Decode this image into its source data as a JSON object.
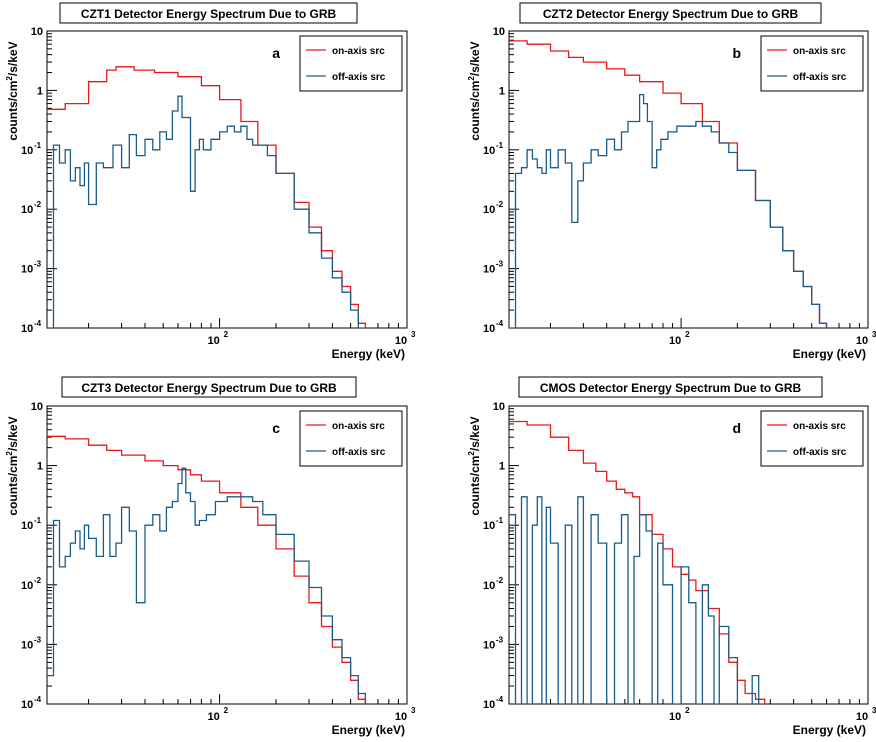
{
  "figure": {
    "ylabel_prefix": "counts/cm",
    "ylabel_sup": "2",
    "ylabel_suffix": "/s/keV",
    "xlabel": "Energy (keV)"
  },
  "chart_data": [
    {
      "type": "line",
      "panel": "a",
      "title": "CZT1 Detector Energy Spectrum Due to GRB",
      "xlabel": "Energy (keV)",
      "ylabel": "counts/cm^2/s/keV",
      "xscale": "log",
      "yscale": "log",
      "xlim": [
        12,
        1000
      ],
      "ylim": [
        0.0001,
        10
      ],
      "legend_position": "top-right",
      "series": [
        {
          "name": "on-axis src",
          "color": "#e8191b",
          "x": [
            12,
            15,
            20,
            25,
            28,
            35,
            45,
            60,
            80,
            100,
            130,
            160,
            200,
            250,
            300,
            350,
            400,
            450,
            500,
            550,
            600
          ],
          "y": [
            0.48,
            0.6,
            1.4,
            2.2,
            2.5,
            2.2,
            2.0,
            1.7,
            1.2,
            0.7,
            0.3,
            0.12,
            0.04,
            0.013,
            0.005,
            0.002,
            0.0009,
            0.0005,
            0.00025,
            0.00012,
            0.0001
          ]
        },
        {
          "name": "off-axis src",
          "color": "#1a5c8a",
          "x": [
            12,
            13,
            14,
            15,
            16,
            17,
            18,
            19,
            20,
            22,
            24,
            27,
            30,
            33,
            36,
            40,
            44,
            48,
            52,
            56,
            60,
            63,
            66,
            70,
            74,
            78,
            82,
            90,
            100,
            110,
            120,
            130,
            140,
            150,
            160,
            180,
            200,
            250,
            300,
            350,
            400,
            450,
            500,
            550,
            600
          ],
          "y": [
            0.0001,
            0.12,
            0.06,
            0.1,
            0.03,
            0.05,
            0.025,
            0.06,
            0.012,
            0.06,
            0.05,
            0.12,
            0.05,
            0.18,
            0.08,
            0.15,
            0.1,
            0.2,
            0.15,
            0.45,
            0.8,
            0.35,
            0.35,
            0.02,
            0.1,
            0.15,
            0.1,
            0.15,
            0.2,
            0.25,
            0.2,
            0.25,
            0.15,
            0.12,
            0.12,
            0.08,
            0.04,
            0.01,
            0.004,
            0.0015,
            0.0007,
            0.0004,
            0.0002,
            0.0001,
            0.0001
          ]
        }
      ]
    },
    {
      "type": "line",
      "panel": "b",
      "title": "CZT2 Detector Energy Spectrum Due to GRB",
      "xlabel": "Energy (keV)",
      "ylabel": "counts/cm^2/s/keV",
      "xscale": "log",
      "yscale": "log",
      "xlim": [
        12,
        1000
      ],
      "ylim": [
        0.0001,
        10
      ],
      "legend_position": "top-right",
      "series": [
        {
          "name": "on-axis src",
          "color": "#e8191b",
          "x": [
            12,
            15,
            20,
            25,
            30,
            40,
            50,
            60,
            80,
            100,
            130,
            160,
            200,
            250,
            300,
            350,
            400,
            450,
            500,
            550,
            600
          ],
          "y": [
            6.8,
            6.0,
            4.6,
            3.6,
            3.0,
            2.3,
            1.8,
            1.4,
            0.9,
            0.6,
            0.3,
            0.13,
            0.045,
            0.014,
            0.005,
            0.002,
            0.0009,
            0.0005,
            0.00025,
            0.00012,
            0.0001
          ]
        },
        {
          "name": "off-axis src",
          "color": "#1a5c8a",
          "x": [
            12,
            13,
            14,
            15,
            16,
            17,
            18,
            19,
            20,
            22,
            24,
            26,
            28,
            30,
            33,
            36,
            40,
            44,
            48,
            52,
            56,
            60,
            63,
            66,
            70,
            74,
            78,
            85,
            95,
            110,
            120,
            130,
            145,
            160,
            180,
            200,
            250,
            300,
            350,
            400,
            450,
            500,
            550,
            600
          ],
          "y": [
            0.0001,
            0.04,
            0.05,
            0.1,
            0.07,
            0.05,
            0.04,
            0.1,
            0.05,
            0.1,
            0.06,
            0.006,
            0.03,
            0.06,
            0.1,
            0.08,
            0.15,
            0.1,
            0.2,
            0.3,
            0.3,
            0.85,
            0.6,
            0.3,
            0.05,
            0.1,
            0.15,
            0.2,
            0.25,
            0.25,
            0.3,
            0.25,
            0.2,
            0.13,
            0.09,
            0.045,
            0.014,
            0.005,
            0.002,
            0.0009,
            0.0005,
            0.00025,
            0.00012,
            0.0001
          ]
        }
      ]
    },
    {
      "type": "line",
      "panel": "c",
      "title": "CZT3 Detector Energy Spectrum Due to GRB",
      "xlabel": "Energy (keV)",
      "ylabel": "counts/cm^2/s/keV",
      "xscale": "log",
      "yscale": "log",
      "xlim": [
        12,
        1000
      ],
      "ylim": [
        0.0001,
        10
      ],
      "legend_position": "top-right",
      "series": [
        {
          "name": "on-axis src",
          "color": "#e8191b",
          "x": [
            12,
            15,
            20,
            25,
            30,
            40,
            50,
            60,
            70,
            80,
            100,
            130,
            160,
            200,
            250,
            300,
            350,
            400,
            450,
            500,
            550,
            600
          ],
          "y": [
            3.1,
            2.8,
            2.2,
            1.8,
            1.5,
            1.2,
            1.0,
            0.85,
            0.7,
            0.55,
            0.35,
            0.2,
            0.1,
            0.04,
            0.014,
            0.005,
            0.002,
            0.0009,
            0.0005,
            0.00025,
            0.00012,
            0.0001
          ]
        },
        {
          "name": "off-axis src",
          "color": "#1a5c8a",
          "x": [
            12,
            13,
            14,
            15,
            16,
            17,
            18,
            19,
            20,
            22,
            24,
            26,
            28,
            30,
            33,
            36,
            40,
            44,
            48,
            52,
            56,
            60,
            63,
            66,
            70,
            74,
            78,
            85,
            95,
            110,
            130,
            150,
            170,
            200,
            250,
            300,
            350,
            400,
            450,
            500,
            550,
            600
          ],
          "y": [
            0.0003,
            0.12,
            0.02,
            0.03,
            0.05,
            0.08,
            0.04,
            0.1,
            0.06,
            0.03,
            0.15,
            0.03,
            0.05,
            0.2,
            0.08,
            0.005,
            0.1,
            0.15,
            0.08,
            0.2,
            0.25,
            0.5,
            0.9,
            0.35,
            0.25,
            0.1,
            0.12,
            0.15,
            0.25,
            0.3,
            0.3,
            0.25,
            0.15,
            0.07,
            0.025,
            0.009,
            0.003,
            0.0012,
            0.0006,
            0.0003,
            0.00015,
            0.0001
          ]
        }
      ]
    },
    {
      "type": "line",
      "panel": "d",
      "title": "CMOS Detector Energy Spectrum Due to GRB",
      "xlabel": "Energy (keV)",
      "ylabel": "counts/cm^2/s/keV",
      "xscale": "log",
      "yscale": "log",
      "xlim": [
        12,
        1000
      ],
      "ylim": [
        0.0001,
        10
      ],
      "legend_position": "top-right",
      "series": [
        {
          "name": "on-axis src",
          "color": "#e8191b",
          "x": [
            12,
            15,
            20,
            25,
            30,
            35,
            40,
            45,
            50,
            55,
            60,
            70,
            80,
            90,
            100,
            110,
            120,
            140,
            160,
            180,
            200,
            220,
            250,
            280
          ],
          "y": [
            5.5,
            4.8,
            3.0,
            1.8,
            1.1,
            0.8,
            0.55,
            0.4,
            0.35,
            0.3,
            0.15,
            0.07,
            0.04,
            0.02,
            0.015,
            0.012,
            0.008,
            0.004,
            0.0015,
            0.0005,
            0.00025,
            0.00015,
            0.00012,
            0.0001
          ]
        },
        {
          "name": "off-axis src",
          "color": "#1a5c8a",
          "x": [
            12,
            13,
            14,
            15,
            16,
            17,
            18,
            19,
            20,
            22,
            24,
            26,
            28,
            30,
            33,
            36,
            40,
            44,
            48,
            52,
            56,
            60,
            65,
            70,
            75,
            80,
            90,
            100,
            110,
            120,
            130,
            140,
            150,
            160,
            180,
            200,
            220,
            240,
            260,
            280
          ],
          "y": [
            0.15,
            0.0001,
            0.3,
            0.0001,
            0.1,
            0.3,
            0.0001,
            0.2,
            0.05,
            0.0001,
            0.1,
            0.0001,
            0.3,
            0.0001,
            0.15,
            0.05,
            0.0001,
            0.05,
            0.15,
            0.0001,
            0.03,
            0.15,
            0.08,
            0.0001,
            0.05,
            0.01,
            0.0001,
            0.02,
            0.005,
            0.0001,
            0.01,
            0.003,
            0.0001,
            0.002,
            0.0006,
            0.0001,
            0.0001,
            0.0003,
            0.0001,
            0.0001
          ]
        }
      ]
    }
  ]
}
